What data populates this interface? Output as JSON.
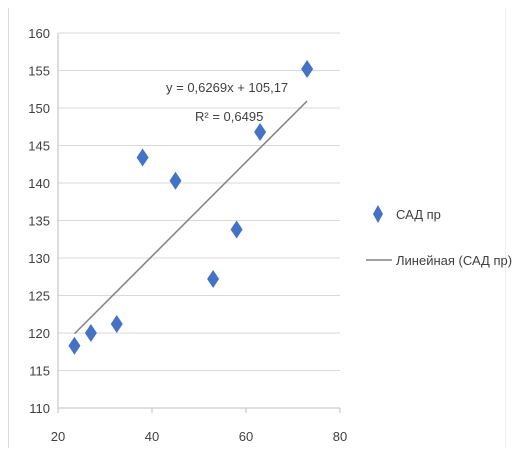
{
  "chart_data": {
    "type": "scatter",
    "title": "",
    "xlabel": "",
    "ylabel": "",
    "xlim": [
      20,
      80
    ],
    "ylim": [
      110,
      160
    ],
    "x_ticks": [
      20,
      40,
      60,
      80
    ],
    "y_ticks": [
      110,
      115,
      120,
      125,
      130,
      135,
      140,
      145,
      150,
      155,
      160
    ],
    "grid": "horizontal",
    "legend_position": "right",
    "series": [
      {
        "name": "САД пр",
        "marker": "diamond",
        "color": "#4472c4",
        "points": [
          {
            "x": 23.5,
            "y": 118.3
          },
          {
            "x": 27.0,
            "y": 120.0
          },
          {
            "x": 32.5,
            "y": 121.2
          },
          {
            "x": 38.0,
            "y": 143.4
          },
          {
            "x": 45.0,
            "y": 140.3
          },
          {
            "x": 53.0,
            "y": 127.2
          },
          {
            "x": 58.0,
            "y": 133.8
          },
          {
            "x": 63.0,
            "y": 146.8
          },
          {
            "x": 73.0,
            "y": 155.2
          }
        ]
      }
    ],
    "trendline": {
      "name": "Линейная (САД пр)",
      "color": "#808080",
      "slope": 0.6269,
      "intercept": 105.17,
      "x_range": [
        23.5,
        73.0
      ],
      "equation_label": "y = 0,6269x + 105,17",
      "r2_label": "R² = 0,6495"
    }
  }
}
